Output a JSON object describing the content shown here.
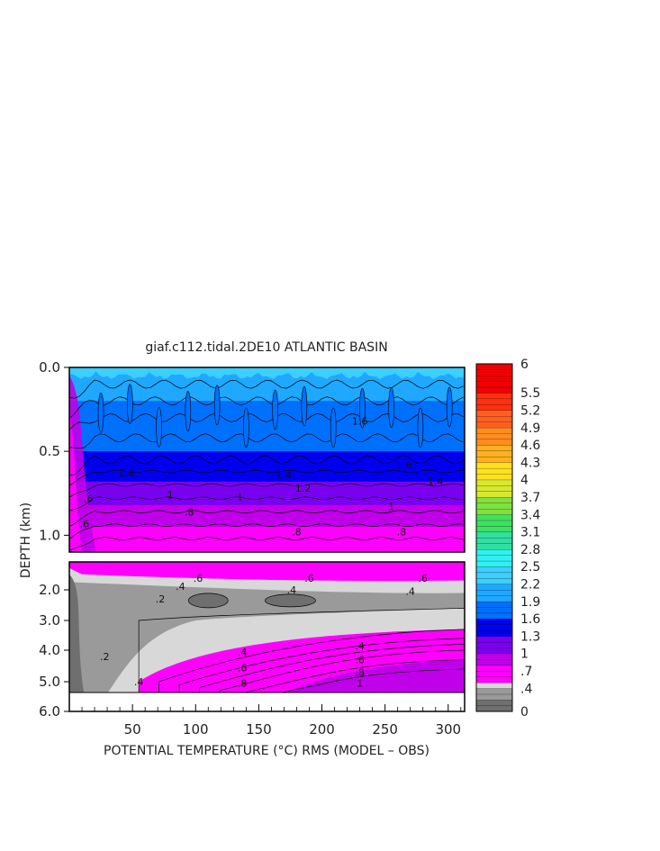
{
  "chart_data": {
    "type": "heatmap",
    "title": "giaf.c112.tidal.2DE10 ATLANTIC BASIN",
    "xlabel": "POTENTIAL TEMPERATURE (°C) RMS (MODEL – OBS)",
    "ylabel": "DEPTH (km)",
    "x_ticks": [
      "50",
      "100",
      "150",
      "200",
      "250",
      "300"
    ],
    "x_tick_values": [
      50,
      100,
      150,
      200,
      250,
      300
    ],
    "xlim": [
      0,
      313
    ],
    "upper_panel": {
      "ylim": [
        0.0,
        1.1
      ],
      "y_ticks": [
        "0.0",
        "0.5",
        "1.0"
      ],
      "y_tick_values": [
        0.0,
        0.5,
        1.0
      ],
      "bands": [
        {
          "depth_top": 0.0,
          "depth_bottom": 0.08,
          "value": 2.0
        },
        {
          "depth_top": 0.08,
          "depth_bottom": 0.2,
          "value": 2.1
        },
        {
          "depth_top": 0.2,
          "depth_bottom": 0.35,
          "value": 1.8
        },
        {
          "depth_top": 0.35,
          "depth_bottom": 0.5,
          "value": 1.65
        },
        {
          "depth_top": 0.5,
          "depth_bottom": 0.6,
          "value": 1.55
        },
        {
          "depth_top": 0.6,
          "depth_bottom": 0.68,
          "value": 1.4
        },
        {
          "depth_top": 0.68,
          "depth_bottom": 0.75,
          "value": 1.25
        },
        {
          "depth_top": 0.75,
          "depth_bottom": 0.82,
          "value": 1.05
        },
        {
          "depth_top": 0.82,
          "depth_bottom": 0.88,
          "value": 0.95
        },
        {
          "depth_top": 0.88,
          "depth_bottom": 0.95,
          "value": 0.85
        },
        {
          "depth_top": 0.95,
          "depth_bottom": 1.1,
          "value": 0.75
        }
      ],
      "contour_labels": [
        {
          "text": "1.6",
          "x": 230,
          "depth": 0.32
        },
        {
          "text": "1.6",
          "x": 265,
          "depth": 0.58
        },
        {
          "text": "1.4",
          "x": 170,
          "depth": 0.64
        },
        {
          "text": "1.4",
          "x": 45,
          "depth": 0.63
        },
        {
          "text": "1.4",
          "x": 290,
          "depth": 0.68
        },
        {
          "text": "1.2",
          "x": 185,
          "depth": 0.72
        },
        {
          "text": "1",
          "x": 80,
          "depth": 0.76
        },
        {
          "text": "1",
          "x": 135,
          "depth": 0.77
        },
        {
          "text": "1",
          "x": 255,
          "depth": 0.83
        },
        {
          "text": ".8",
          "x": 95,
          "depth": 0.86
        },
        {
          "text": ".8",
          "x": 180,
          "depth": 0.98
        },
        {
          "text": ".8",
          "x": 263,
          "depth": 0.98
        },
        {
          "text": ".6",
          "x": 15,
          "depth": 0.78
        },
        {
          "text": ".6",
          "x": 12,
          "depth": 0.93
        }
      ]
    },
    "lower_panel": {
      "ylim": [
        1.1,
        6.0
      ],
      "y_ticks": [
        "2.0",
        "3.0",
        "4.0",
        "5.0",
        "6.0"
      ],
      "y_tick_values": [
        2.0,
        3.0,
        4.0,
        5.0,
        6.0
      ],
      "contour_labels": [
        {
          "text": ".6",
          "x": 102,
          "depth": 1.62
        },
        {
          "text": ".6",
          "x": 190,
          "depth": 1.62
        },
        {
          "text": ".6",
          "x": 280,
          "depth": 1.62
        },
        {
          "text": ".4",
          "x": 88,
          "depth": 1.88
        },
        {
          "text": ".4",
          "x": 176,
          "depth": 2.0
        },
        {
          "text": ".4",
          "x": 270,
          "depth": 2.05
        },
        {
          "text": ".2",
          "x": 72,
          "depth": 2.3
        },
        {
          "text": ".2",
          "x": 28,
          "depth": 4.2
        },
        {
          "text": ".4",
          "x": 137,
          "depth": 4.05
        },
        {
          "text": ".4",
          "x": 230,
          "depth": 3.85
        },
        {
          "text": ".6",
          "x": 137,
          "depth": 4.55
        },
        {
          "text": ".6",
          "x": 230,
          "depth": 4.3
        },
        {
          "text": ".8",
          "x": 137,
          "depth": 5.05
        },
        {
          "text": ".8",
          "x": 230,
          "depth": 4.7
        },
        {
          "text": "1",
          "x": 230,
          "depth": 5.05
        },
        {
          "text": ".4",
          "x": 55,
          "depth": 5.0
        }
      ]
    },
    "colorbar": {
      "min": 0,
      "max": 6,
      "labels": [
        "6",
        "5.5",
        "5.2",
        "4.9",
        "4.6",
        "4.3",
        "4",
        "3.7",
        "3.4",
        "3.1",
        "2.8",
        "2.5",
        "2.2",
        "1.9",
        "1.6",
        "1.3",
        "1",
        ".7",
        ".4",
        "0"
      ],
      "label_values": [
        6,
        5.5,
        5.2,
        4.9,
        4.6,
        4.3,
        4,
        3.7,
        3.4,
        3.1,
        2.8,
        2.5,
        2.2,
        1.9,
        1.6,
        1.3,
        1,
        0.7,
        0.4,
        0
      ],
      "stops": [
        {
          "value": 0.0,
          "color": "#6f6f6f"
        },
        {
          "value": 0.2,
          "color": "#9a9a9a"
        },
        {
          "value": 0.4,
          "color": "#d8d8d8"
        },
        {
          "value": 0.5,
          "color": "#ff00ff"
        },
        {
          "value": 0.8,
          "color": "#c000e8"
        },
        {
          "value": 1.0,
          "color": "#7a00f0"
        },
        {
          "value": 1.3,
          "color": "#0000ee"
        },
        {
          "value": 1.6,
          "color": "#0070ff"
        },
        {
          "value": 1.9,
          "color": "#1fa8ff"
        },
        {
          "value": 2.2,
          "color": "#3ccfff"
        },
        {
          "value": 2.5,
          "color": "#30f0f0"
        },
        {
          "value": 2.8,
          "color": "#30e0a0"
        },
        {
          "value": 3.1,
          "color": "#40e060"
        },
        {
          "value": 3.4,
          "color": "#80e040"
        },
        {
          "value": 3.7,
          "color": "#d8e830"
        },
        {
          "value": 4.0,
          "color": "#ffe020"
        },
        {
          "value": 4.3,
          "color": "#ffb020"
        },
        {
          "value": 4.6,
          "color": "#ff8c20"
        },
        {
          "value": 4.9,
          "color": "#ff6020"
        },
        {
          "value": 5.2,
          "color": "#ff3010"
        },
        {
          "value": 5.5,
          "color": "#f00000"
        },
        {
          "value": 6.0,
          "color": "#a00000"
        }
      ]
    }
  }
}
